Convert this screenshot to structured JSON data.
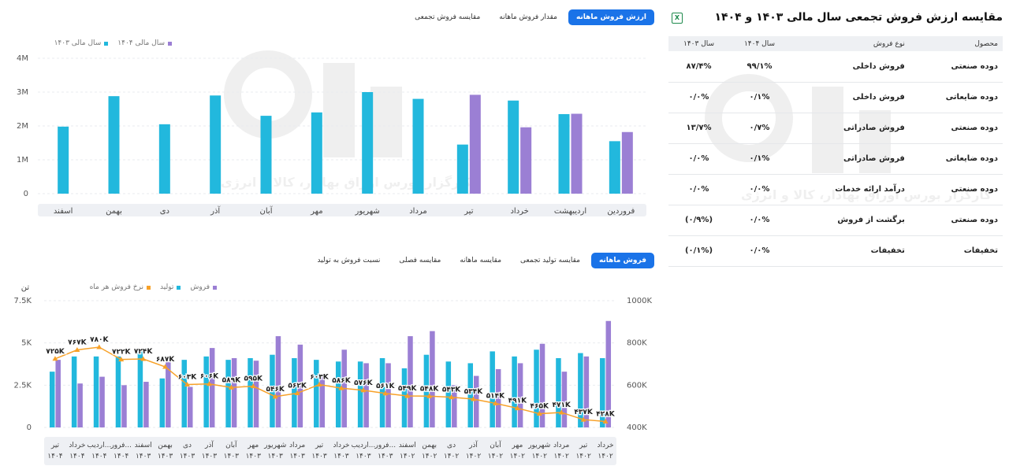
{
  "top_tabs": [
    "ارزش فروش ماهانه",
    "مقدار فروش ماهانه",
    "مقایسه فروش تجمعی"
  ],
  "top_active_tab": 0,
  "bottom_tabs": [
    "فروش ماهانه",
    "مقایسه تولید تجمعی",
    "مقایسه ماهانه",
    "مقایسه فصلی",
    "نسبت فروش به تولید"
  ],
  "bottom_active_tab": 0,
  "watermark_text": "کارگزار بورس اوراق بهادار، کالا و انرژی",
  "summary": {
    "title": "مقایسه ارزش فروش تجمعی سال مالی ۱۴۰۳ و ۱۴۰۴",
    "export_icon": "excel-export-icon",
    "headers": [
      "محصول",
      "نوع فروش",
      "سال ۱۴۰۴",
      "سال ۱۴۰۳"
    ],
    "rows": [
      [
        "دوده صنعتی",
        "فروش داخلی",
        "۹۹/۱%",
        "۸۷/۴%"
      ],
      [
        "دوده ضایعاتی",
        "فروش داخلی",
        "۰/۱%",
        "۰/۰%"
      ],
      [
        "دوده صنعتی",
        "فروش صادراتی",
        "۰/۷%",
        "۱۳/۷%"
      ],
      [
        "دوده ضایعاتی",
        "فروش صادراتی",
        "۰/۱%",
        "۰/۰%"
      ],
      [
        "دوده صنعتی",
        "درآمد ارائه خدمات",
        "۰/۰%",
        "۰/۰%"
      ],
      [
        "دوده صنعتی",
        "برگشت از فروش",
        "۰/۰%",
        "(۰/۹%)"
      ],
      [
        "تخفیفات",
        "تخفیفات",
        "۰/۰%",
        "(۰/۱%)"
      ]
    ]
  },
  "chart_data": [
    {
      "type": "bar",
      "legend": [
        {
          "name": "سال مالی ۱۴۰۴",
          "color": "#9b7fd4"
        },
        {
          "name": "سال مالی ۱۴۰۳",
          "color": "#22b8dd"
        }
      ],
      "yticks": [
        "0",
        "1M",
        "2M",
        "3M",
        "4M"
      ],
      "ylim": [
        0,
        4000000
      ],
      "categories": [
        "فروردین",
        "اردیبهشت",
        "خرداد",
        "تیر",
        "مرداد",
        "شهریور",
        "مهر",
        "آبان",
        "آذر",
        "دی",
        "بهمن",
        "اسفند"
      ],
      "series": [
        {
          "name": "سال مالی ۱۴۰۳",
          "color": "#22b8dd",
          "values": [
            1550000,
            2350000,
            2750000,
            1450000,
            2800000,
            3000000,
            2400000,
            2300000,
            2900000,
            2050000,
            2880000,
            1980000
          ]
        },
        {
          "name": "سال مالی ۱۴۰۴",
          "color": "#9b7fd4",
          "values": [
            1820000,
            2360000,
            1960000,
            2920000,
            null,
            null,
            null,
            null,
            null,
            null,
            null,
            null
          ]
        }
      ]
    },
    {
      "type": "bar",
      "legend": [
        {
          "name": "فروش",
          "color": "#9b7fd4"
        },
        {
          "name": "تولید",
          "color": "#22b8dd"
        },
        {
          "name": "نرخ فروش هر ماه",
          "color": "#f7a128"
        }
      ],
      "y_left_unit": "تن",
      "y_left_ticks": [
        "0",
        "2.5K",
        "5K",
        "7.5K"
      ],
      "y_left_lim": [
        0,
        7500
      ],
      "y_right_ticks": [
        "400K",
        "600K",
        "800K",
        "1000K"
      ],
      "y_right_lim": [
        400000,
        1000000
      ],
      "categories": [
        [
          "خرداد",
          "۱۴۰۲"
        ],
        [
          "تیر",
          "۱۴۰۲"
        ],
        [
          "مرداد",
          "۱۴۰۲"
        ],
        [
          "شهریور",
          "۱۴۰۲"
        ],
        [
          "مهر",
          "۱۴۰۲"
        ],
        [
          "آبان",
          "۱۴۰۲"
        ],
        [
          "آذر",
          "۱۴۰۲"
        ],
        [
          "دی",
          "۱۴۰۲"
        ],
        [
          "بهمن",
          "۱۴۰۲"
        ],
        [
          "اسفند",
          "۱۴۰۲"
        ],
        [
          "فرور...",
          "۱۴۰۳"
        ],
        [
          "اردیب...",
          "۱۴۰۳"
        ],
        [
          "خرداد",
          "۱۴۰۳"
        ],
        [
          "تیر",
          "۱۴۰۳"
        ],
        [
          "مرداد",
          "۱۴۰۳"
        ],
        [
          "شهریور",
          "۱۴۰۳"
        ],
        [
          "مهر",
          "۱۴۰۳"
        ],
        [
          "آبان",
          "۱۴۰۳"
        ],
        [
          "آذر",
          "۱۴۰۳"
        ],
        [
          "دی",
          "۱۴۰۳"
        ],
        [
          "بهمن",
          "۱۴۰۳"
        ],
        [
          "اسفند",
          "۱۴۰۳"
        ],
        [
          "فرور...",
          "۱۴۰۴"
        ],
        [
          "اردیب...",
          "۱۴۰۴"
        ],
        [
          "خرداد",
          "۱۴۰۴"
        ],
        [
          "تیر",
          "۱۴۰۴"
        ]
      ],
      "series": [
        {
          "name": "تولید",
          "axis": "left",
          "values": [
            4100,
            4400,
            4100,
            4600,
            4200,
            4500,
            3800,
            3900,
            4300,
            3500,
            4100,
            3900,
            3900,
            4000,
            4100,
            4300,
            4100,
            4000,
            4200,
            4000,
            2900,
            4500,
            4200,
            4200,
            4200,
            3300
          ]
        },
        {
          "name": "فروش",
          "axis": "left",
          "values": [
            6300,
            4200,
            3300,
            4950,
            3800,
            3450,
            3050,
            2500,
            5700,
            5400,
            3800,
            3800,
            4600,
            3100,
            4900,
            5400,
            3950,
            4100,
            4700,
            2400,
            4000,
            2700,
            2500,
            3000,
            2600,
            4000
          ]
        },
        {
          "name": "نرخ فروش هر ماه",
          "axis": "right",
          "values": [
            428000,
            437000,
            471000,
            465000,
            491000,
            514000,
            534000,
            543000,
            548000,
            549000,
            561000,
            576000,
            586000,
            603000,
            562000,
            546000,
            595000,
            589000,
            606000,
            603000,
            687000,
            724000,
            722000,
            780000,
            767000,
            725000
          ],
          "labels": [
            "۴۲۸K",
            "۴۳۷K",
            "۴۷۱K",
            "۴۶۵K",
            "۴۹۱K",
            "۵۱۴K",
            "۵۳۴K",
            "۵۴۳K",
            "۵۴۸K",
            "۵۴۹K",
            "۵۶۱K",
            "۵۷۶K",
            "۵۸۶K",
            "۶۰۳K",
            "۵۶۲K",
            "۵۴۶K",
            "۵۹۵K",
            "۵۸۹K",
            "۶۰۶K",
            "۶۰۳K",
            "۶۸۷K",
            "۷۲۴K",
            "۷۲۲K",
            "۷۸۰K",
            "۷۶۷K",
            "۷۲۵K"
          ]
        }
      ]
    }
  ]
}
